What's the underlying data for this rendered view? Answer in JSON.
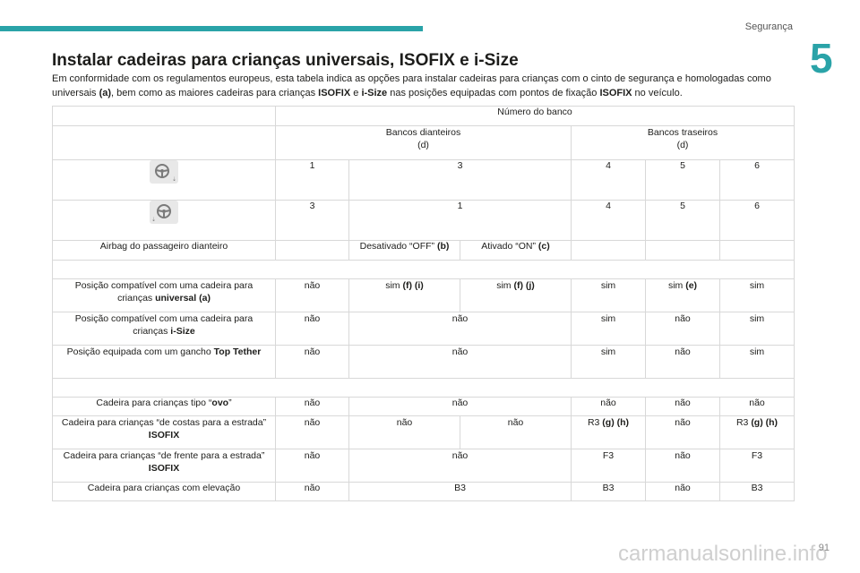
{
  "header": {
    "section": "Segurança",
    "chapter": "5"
  },
  "title": "Instalar cadeiras para crianças universais, ISOFIX e i-Size",
  "intro": {
    "t1": "Em conformidade com os regulamentos europeus, esta tabela indica as opções para instalar cadeiras para crianças com o cinto de segurança e homologadas como universais ",
    "b1": "(a)",
    "t2": ", bem como as maiores cadeiras para crianças ",
    "b2": "ISOFIX",
    "t3": " e ",
    "b3": "i-Size",
    "t4": " nas posições equipadas com pontos de fixação ",
    "b4": "ISOFIX",
    "t5": " no veículo."
  },
  "table": {
    "seat_number_header": "Número do banco",
    "front_seats": {
      "label": "Bancos dianteiros",
      "note": "(d)"
    },
    "rear_seats": {
      "label": "Bancos traseiros",
      "note": "(d)"
    },
    "seat_row_lhd": [
      "1",
      "3",
      "4",
      "5",
      "6"
    ],
    "seat_row_rhd": [
      "3",
      "1",
      "4",
      "5",
      "6"
    ],
    "airbag": {
      "label": "Airbag do passageiro dianteiro",
      "off": "Desativado “OFF” ",
      "off_ref": "(b)",
      "on": "Ativado “ON” ",
      "on_ref": "(c)"
    },
    "universal": {
      "label": "Posição compatível com uma cadeira para crianças ",
      "label_b": "universal (a)",
      "c1": "não",
      "c2": "sim ",
      "c2_b": "(f) (i)",
      "c3": "sim ",
      "c3_b": "(f) (j)",
      "c4": "sim",
      "c5": "sim ",
      "c5_b": "(e)",
      "c6": "sim"
    },
    "isize": {
      "label": "Posição compatível com uma cadeira para crianças ",
      "label_b": "i-Size",
      "c1": "não",
      "c23": "não",
      "c4": "sim",
      "c5": "não",
      "c6": "sim"
    },
    "toptether": {
      "label": "Posição equipada com um gancho ",
      "label_b": "Top Tether",
      "c1": "não",
      "c23": "não",
      "c4": "sim",
      "c5": "não",
      "c6": "sim"
    },
    "ovo": {
      "label": "Cadeira para crianças tipo “",
      "label_b": "ovo",
      "label_end": "”",
      "c1": "não",
      "c23": "não",
      "c4": "não",
      "c5": "não",
      "c6": "não"
    },
    "rear_facing": {
      "label": "Cadeira para crianças “de costas para a estrada” ",
      "label_b": "ISOFIX",
      "c1": "não",
      "c2": "não",
      "c3": "não",
      "c4": "R3 ",
      "c4_b": "(g) (h)",
      "c5": "não",
      "c6": "R3 ",
      "c6_b": "(g) (h)"
    },
    "forward_facing": {
      "label": "Cadeira para crianças “de frente para a estrada” ",
      "label_b": "ISOFIX",
      "c1": "não",
      "c23": "não",
      "c4": "F3",
      "c5": "não",
      "c6": "F3"
    },
    "booster": {
      "label": "Cadeira para crianças com elevação",
      "c1": "não",
      "c23": "B3",
      "c4": "B3",
      "c5": "não",
      "c6": "B3"
    }
  },
  "icons": {
    "lhd": "steering-wheel-left-icon",
    "rhd": "steering-wheel-right-icon"
  },
  "colors": {
    "accent": "#2aa3a8",
    "border": "#d8d8d8"
  },
  "footer": {
    "watermark": "carmanualsonline.info",
    "page": "91"
  }
}
